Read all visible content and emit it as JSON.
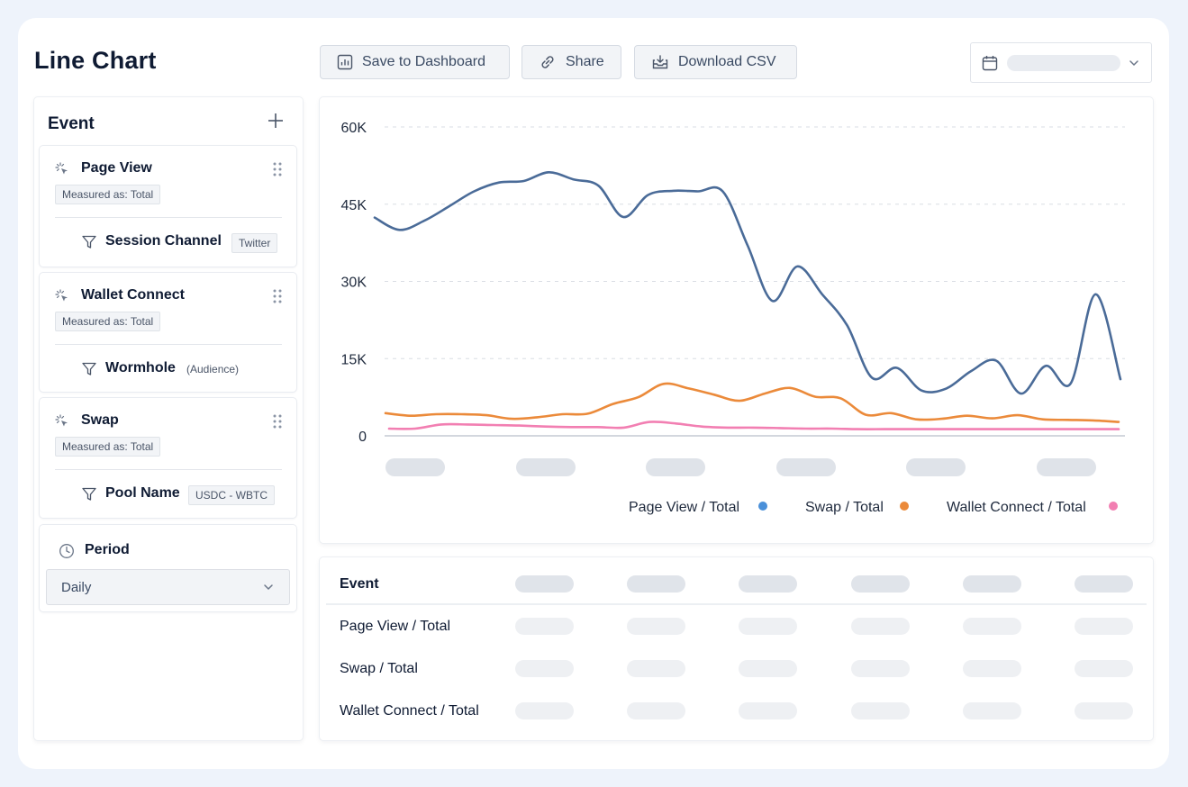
{
  "title": "Line Chart",
  "toolbar": {
    "save_label": "Save to Dashboard",
    "share_label": "Share",
    "download_label": "Download CSV"
  },
  "sidebar": {
    "header": "Event",
    "events": [
      {
        "name": "Page View",
        "measure": "Measured as: Total",
        "filter_name": "Session Channel",
        "filter_tag": "Twitter"
      },
      {
        "name": "Wallet Connect",
        "measure": "Measured as: Total",
        "filter_name": "Wormhole",
        "filter_tag": "(Audience)"
      },
      {
        "name": "Swap",
        "measure": "Measured as: Total",
        "filter_name": "Pool Name",
        "filter_tag": "USDC - WBTC"
      }
    ],
    "period_label": "Period",
    "period_value": "Daily"
  },
  "colors": {
    "page_view": "#4a6b98",
    "swap": "#eb8a3a",
    "wallet_connect": "#f27fb2",
    "legend_page_view_dot": "#4a90d9"
  },
  "chart_data": {
    "type": "line",
    "y_ticks": [
      "60K",
      "45K",
      "30K",
      "15K",
      "0"
    ],
    "ylim": [
      0,
      60000
    ],
    "grid": true,
    "legend_position": "bottom-right",
    "x_labels_visible": false,
    "series": [
      {
        "name": "Page View / Total",
        "color_key": "page_view",
        "values": [
          42400,
          40000,
          41800,
          44600,
          47500,
          49200,
          49500,
          51200,
          49800,
          48600,
          42500,
          46800,
          47600,
          47500,
          47500,
          37000,
          26200,
          32900,
          27500,
          21500,
          11300,
          13200,
          8800,
          9200,
          12600,
          14600,
          8200,
          13600,
          10200,
          27500,
          11000
        ]
      },
      {
        "name": "Swap / Total",
        "color_key": "swap",
        "values": [
          4400,
          3900,
          4200,
          4200,
          4000,
          3300,
          3600,
          4200,
          4300,
          6200,
          7500,
          10100,
          9200,
          8000,
          6800,
          8200,
          9300,
          7600,
          7300,
          4100,
          4400,
          3200,
          3300,
          3900,
          3400,
          4000,
          3200,
          3100,
          3000,
          2700
        ]
      },
      {
        "name": "Wallet Connect / Total",
        "color_key": "wallet_connect",
        "values": [
          1400,
          1400,
          2200,
          2200,
          2100,
          2000,
          1800,
          1700,
          1700,
          1600,
          2700,
          2400,
          1800,
          1600,
          1600,
          1500,
          1400,
          1400,
          1300,
          1300,
          1300,
          1300,
          1300,
          1300,
          1300,
          1300,
          1300,
          1300,
          1300
        ]
      }
    ],
    "legend": [
      "Page View / Total",
      "Swap / Total",
      "Wallet Connect / Total"
    ]
  },
  "table": {
    "header": "Event",
    "rows": [
      "Page View / Total",
      "Swap / Total",
      "Wallet Connect / Total"
    ]
  }
}
